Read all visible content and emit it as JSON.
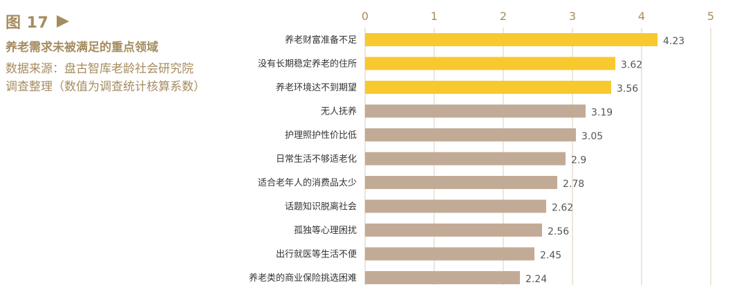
{
  "figure": {
    "label": "图 17",
    "title": "养老需求未被满足的重点领域",
    "source_line1": "数据来源：盘古智库老龄社会研究院",
    "source_line2": "调查整理（数值为调查统计核算系数）"
  },
  "colors": {
    "highlight_bar": "#f8c92e",
    "default_bar": "#c2ab96",
    "accent_text": "#a58c5f",
    "grid": "#d9cdb8"
  },
  "chart_data": {
    "type": "bar",
    "orientation": "horizontal",
    "xlim": [
      0,
      5
    ],
    "ticks": [
      0,
      1,
      2,
      3,
      4,
      5
    ],
    "grid": true,
    "categories": [
      "养老财富准备不足",
      "没有长期稳定养老的住所",
      "养老环境达不到期望",
      "无人抚养",
      "护理照护性价比低",
      "日常生活不够适老化",
      "适合老年人的消费品太少",
      "话题知识脱离社会",
      "孤独等心理困扰",
      "出行就医等生活不便",
      "养老类的商业保险挑选困难"
    ],
    "values": [
      4.23,
      3.62,
      3.56,
      3.19,
      3.05,
      2.9,
      2.78,
      2.62,
      2.56,
      2.45,
      2.24
    ],
    "labels": [
      "4.23",
      "3.62",
      "3.56",
      "3.19",
      "3.05",
      "2.9",
      "2.78",
      "2.62",
      "2.56",
      "2.45",
      "2.24"
    ],
    "highlighted_count": 3
  }
}
